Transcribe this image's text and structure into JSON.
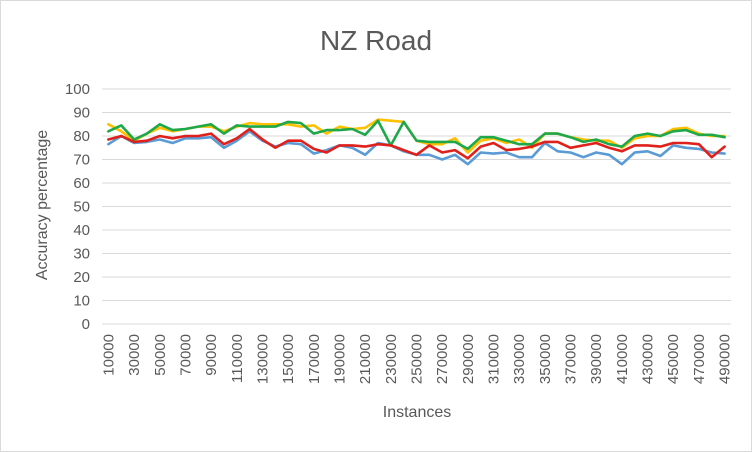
{
  "chart_data": {
    "type": "line",
    "title": "NZ Road",
    "xlabel": "Instances",
    "ylabel": "Accuracy percentage",
    "ylim": [
      0,
      100
    ],
    "yticks": [
      0,
      10,
      20,
      30,
      40,
      50,
      60,
      70,
      80,
      90,
      100
    ],
    "x": [
      10000,
      20000,
      30000,
      40000,
      50000,
      60000,
      70000,
      80000,
      90000,
      100000,
      110000,
      120000,
      130000,
      140000,
      150000,
      160000,
      170000,
      180000,
      190000,
      200000,
      210000,
      220000,
      230000,
      240000,
      250000,
      260000,
      270000,
      280000,
      290000,
      300000,
      310000,
      320000,
      330000,
      340000,
      350000,
      360000,
      370000,
      380000,
      390000,
      400000,
      410000,
      420000,
      430000,
      440000,
      450000,
      460000,
      470000,
      480000,
      490000
    ],
    "xtick_labels": [
      "10000",
      "30000",
      "50000",
      "70000",
      "90000",
      "110000",
      "130000",
      "150000",
      "170000",
      "190000",
      "210000",
      "230000",
      "250000",
      "270000",
      "290000",
      "310000",
      "330000",
      "350000",
      "370000",
      "390000",
      "410000",
      "430000",
      "450000",
      "470000",
      "490000"
    ],
    "grid": true,
    "legend": "none",
    "series": [
      {
        "color": "#5b9bd5",
        "values": [
          76.5,
          80,
          77,
          77.5,
          78.5,
          77,
          79,
          79,
          79.5,
          75,
          78,
          82,
          78,
          75.5,
          77,
          76.5,
          72.5,
          74,
          76,
          75,
          72,
          77,
          76,
          73.5,
          72,
          72,
          70,
          72,
          68,
          73,
          72.5,
          73,
          71,
          71,
          77,
          73.5,
          73,
          71,
          73,
          72,
          68,
          73,
          73.5,
          71.5,
          76,
          75,
          74.5,
          73,
          72.5
        ]
      },
      {
        "color": "#ffc000",
        "values": [
          85,
          82,
          78,
          81,
          83.5,
          82,
          83,
          84,
          84,
          82,
          84,
          85.5,
          85,
          85,
          85,
          84,
          84.5,
          81,
          84,
          83,
          83.5,
          87,
          86.5,
          86,
          78,
          76.5,
          76.5,
          79,
          73,
          78,
          79,
          77,
          78.5,
          75,
          81,
          81,
          79.5,
          78.5,
          78,
          78,
          75,
          79,
          80,
          80,
          83,
          83.5,
          81,
          80,
          80
        ]
      },
      {
        "color": "#1ea84a",
        "values": [
          82,
          84.5,
          78.5,
          81,
          85,
          82.5,
          83,
          84,
          85,
          81,
          84.5,
          84,
          84,
          84,
          86,
          85.5,
          81,
          82.5,
          82.5,
          83,
          80.5,
          86.5,
          76,
          86,
          78,
          77.5,
          77.5,
          77.5,
          74.5,
          79.5,
          79.5,
          78,
          76.5,
          76.5,
          81,
          81,
          79.5,
          77.5,
          78.5,
          76.5,
          75.5,
          80,
          81,
          80,
          82,
          82.5,
          80.5,
          80.5,
          79.5
        ]
      },
      {
        "color": "#e0201b",
        "values": [
          78.5,
          80,
          77.5,
          78,
          80,
          79,
          80,
          80,
          81,
          76.5,
          79,
          83,
          78.5,
          75,
          78,
          78,
          74.5,
          73,
          76,
          76,
          75.5,
          76.5,
          76,
          74,
          72,
          76,
          73,
          74,
          70.5,
          75.5,
          77,
          74,
          74.5,
          75.5,
          77.5,
          77.5,
          75,
          76,
          77,
          75,
          73.5,
          76,
          76,
          75.5,
          77,
          77,
          76.5,
          71,
          75.5
        ]
      }
    ]
  }
}
